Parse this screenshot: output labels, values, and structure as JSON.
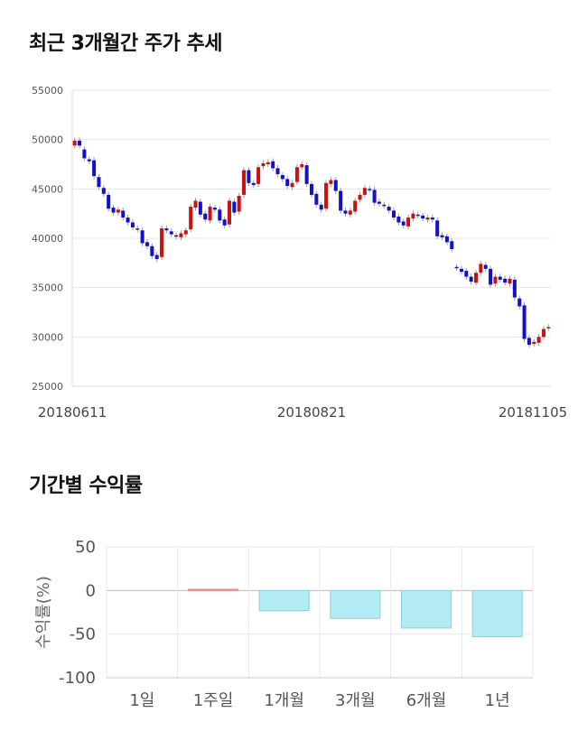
{
  "titles": {
    "price_trend": "최근 3개월간 주가 추세",
    "period_returns": "기간별 수익률"
  },
  "chart_data": [
    {
      "type": "candlestick",
      "title": "최근 3개월간 주가 추세",
      "ylim": [
        25000,
        55000
      ],
      "yticks": [
        "55000",
        "50000",
        "45000",
        "40000",
        "35000",
        "30000",
        "25000"
      ],
      "xtick_labels": [
        "20180611",
        "20180821",
        "20181105"
      ],
      "grid": true,
      "colors": {
        "up": "#cc1111",
        "down": "#1111cc",
        "wick": "#999999"
      },
      "close": [
        49900,
        49400,
        48100,
        47800,
        46300,
        45200,
        44500,
        43000,
        42600,
        42900,
        42100,
        41600,
        41100,
        40900,
        39500,
        39200,
        38200,
        37900,
        41000,
        40800,
        40400,
        40200,
        40500,
        40800,
        43200,
        43800,
        42400,
        41900,
        43200,
        42900,
        41800,
        41300,
        43800,
        42600,
        44300,
        46900,
        45600,
        45400,
        47200,
        47600,
        47700,
        47100,
        46500,
        46000,
        45300,
        45600,
        47200,
        47500,
        45500,
        44400,
        43400,
        42900,
        45600,
        45900,
        44800,
        42800,
        42500,
        42800,
        43800,
        44400,
        45100,
        44900,
        43600,
        43500,
        43300,
        42800,
        42100,
        41600,
        41300,
        42100,
        42500,
        42300,
        42000,
        42100,
        41900,
        40200,
        40100,
        39600,
        38900,
        37000,
        36600,
        36100,
        35600,
        36500,
        37400,
        36900,
        35300,
        36100,
        35800,
        35500,
        35900,
        34000,
        33100,
        29800,
        29200,
        29500,
        30000,
        30800,
        31000
      ],
      "open": [
        49400,
        49900,
        49000,
        48000,
        47900,
        46200,
        45100,
        44400,
        43100,
        42600,
        42800,
        42100,
        41600,
        41000,
        40800,
        39600,
        39200,
        38300,
        38100,
        41000,
        40700,
        40300,
        40100,
        40400,
        40900,
        43100,
        43700,
        42500,
        41800,
        43100,
        42900,
        41900,
        41400,
        43700,
        42700,
        44400,
        46900,
        45600,
        45500,
        47300,
        47500,
        47800,
        47100,
        46400,
        46000,
        45200,
        45700,
        47200,
        47400,
        45500,
        44500,
        43400,
        43000,
        45500,
        45900,
        44800,
        42800,
        42400,
        42700,
        43900,
        44400,
        45000,
        44900,
        43700,
        43400,
        43200,
        42800,
        42200,
        41700,
        41200,
        42000,
        42400,
        42300,
        41900,
        42100,
        41800,
        40300,
        40200,
        39700,
        37100,
        36900,
        36700,
        36100,
        35500,
        36500,
        37300,
        36900,
        35400,
        36100,
        35900,
        35400,
        35800,
        33900,
        33200,
        29900,
        29300,
        29400,
        30000,
        30900
      ]
    },
    {
      "type": "bar",
      "title": "기간별 수익률",
      "categories": [
        "1일",
        "1주일",
        "1개월",
        "3개월",
        "6개월",
        "1년"
      ],
      "values": [
        0,
        1.5,
        -23,
        -32,
        -43,
        -53
      ],
      "ylabel": "수익률(%)",
      "ylim": [
        -100,
        50
      ],
      "yticks": [
        "50",
        "0",
        "-50",
        "-100"
      ],
      "grid": true,
      "colors": {
        "positive": "#f4a6a6",
        "negative": "#b3ebf5",
        "negative_edge": "#8ccfdc",
        "positive_edge": "#e88a8a"
      }
    }
  ]
}
